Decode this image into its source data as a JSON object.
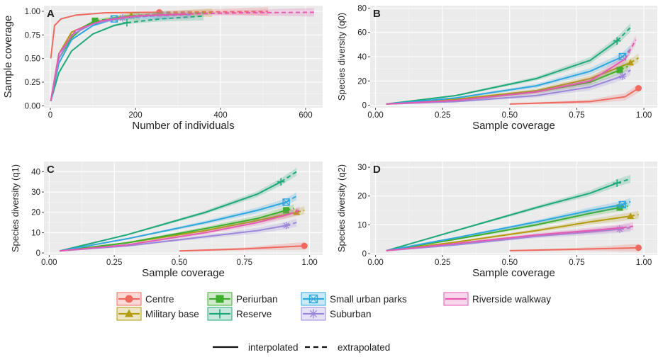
{
  "colors": {
    "Centre": "#F0695E",
    "Military base": "#B59B12",
    "Periurban": "#3FAE2E",
    "Reserve": "#1FA878",
    "Small urban parks": "#2EA7DD",
    "Suburban": "#9B87D9",
    "Riverside walkway": "#E45AB1"
  },
  "legend": {
    "items": [
      {
        "name": "Centre",
        "marker": "circle"
      },
      {
        "name": "Military base",
        "marker": "triangle"
      },
      {
        "name": "Periurban",
        "marker": "square"
      },
      {
        "name": "Reserve",
        "marker": "plus"
      },
      {
        "name": "Small urban parks",
        "marker": "boxx"
      },
      {
        "name": "Suburban",
        "marker": "star"
      },
      {
        "name": "Riverside walkway",
        "marker": "none"
      }
    ],
    "line_types": [
      {
        "label": "interpolated",
        "dash": "solid"
      },
      {
        "label": "extrapolated",
        "dash": "dashed"
      }
    ]
  },
  "chart_data": [
    {
      "panel": "A",
      "type": "line",
      "xlabel": "Number of individuals",
      "ylabel": "Sample coverage",
      "xlim": [
        -15,
        640
      ],
      "ylim": [
        -0.02,
        1.06
      ],
      "xticks": [
        0,
        200,
        400,
        600
      ],
      "xticklabels": [
        "0",
        "200",
        "400",
        "600"
      ],
      "yticks": [
        0,
        0.25,
        0.5,
        0.75,
        1.0
      ],
      "yticklabels": [
        "0.00",
        "0.25",
        "0.50",
        "0.75",
        "1.00"
      ],
      "series": [
        {
          "name": "Centre",
          "points": [
            [
              1,
              0.5
            ],
            [
              10,
              0.85
            ],
            [
              25,
              0.92
            ],
            [
              60,
              0.96
            ],
            [
              130,
              0.985
            ],
            [
              256,
              0.99
            ],
            [
              380,
              0.995
            ],
            [
              512,
              0.998
            ]
          ],
          "observed": [
            256,
            0.99
          ]
        },
        {
          "name": "Military base",
          "points": [
            [
              1,
              0.05
            ],
            [
              20,
              0.55
            ],
            [
              50,
              0.78
            ],
            [
              100,
              0.88
            ],
            [
              150,
              0.93
            ],
            [
              190,
              0.955
            ],
            [
              280,
              0.975
            ],
            [
              380,
              0.985
            ]
          ],
          "observed": [
            190,
            0.955
          ]
        },
        {
          "name": "Periurban",
          "points": [
            [
              1,
              0.05
            ],
            [
              20,
              0.5
            ],
            [
              50,
              0.72
            ],
            [
              80,
              0.84
            ],
            [
              105,
              0.9
            ],
            [
              160,
              0.93
            ],
            [
              210,
              0.95
            ]
          ],
          "observed": [
            105,
            0.9
          ]
        },
        {
          "name": "Reserve",
          "points": [
            [
              1,
              0.05
            ],
            [
              20,
              0.35
            ],
            [
              50,
              0.58
            ],
            [
              100,
              0.76
            ],
            [
              150,
              0.85
            ],
            [
              180,
              0.88
            ],
            [
              260,
              0.92
            ],
            [
              360,
              0.95
            ]
          ],
          "observed": [
            180,
            0.88
          ]
        },
        {
          "name": "Small urban parks",
          "points": [
            [
              1,
              0.05
            ],
            [
              20,
              0.45
            ],
            [
              50,
              0.7
            ],
            [
              100,
              0.85
            ],
            [
              150,
              0.92
            ],
            [
              200,
              0.94
            ],
            [
              280,
              0.96
            ]
          ],
          "observed": [
            150,
            0.92
          ]
        },
        {
          "name": "Suburban",
          "points": [
            [
              1,
              0.05
            ],
            [
              20,
              0.5
            ],
            [
              50,
              0.75
            ],
            [
              100,
              0.87
            ],
            [
              170,
              0.93
            ],
            [
              230,
              0.95
            ],
            [
              330,
              0.965
            ]
          ],
          "observed": [
            170,
            0.93
          ]
        },
        {
          "name": "Riverside walkway",
          "points": [
            [
              1,
              0.05
            ],
            [
              20,
              0.55
            ],
            [
              60,
              0.8
            ],
            [
              120,
              0.9
            ],
            [
              200,
              0.95
            ],
            [
              310,
              0.97
            ],
            [
              450,
              0.985
            ],
            [
              620,
              0.99
            ]
          ],
          "observed": [
            310,
            0.97
          ]
        }
      ]
    },
    {
      "panel": "B",
      "type": "line",
      "xlabel": "Sample coverage",
      "ylabel": "Species diversity (q0)",
      "xlim": [
        -0.02,
        1.05
      ],
      "ylim": [
        -2,
        82
      ],
      "xticks": [
        0,
        0.25,
        0.5,
        0.75,
        1.0
      ],
      "xticklabels": [
        "0.00",
        "0.25",
        "0.50",
        "0.75",
        "1.00"
      ],
      "yticks": [
        0,
        20,
        40,
        60,
        80
      ],
      "yticklabels": [
        "0",
        "20",
        "40",
        "60",
        "80"
      ],
      "series": [
        {
          "name": "Centre",
          "points": [
            [
              0.5,
              1
            ],
            [
              0.8,
              3
            ],
            [
              0.93,
              7
            ],
            [
              0.98,
              14
            ]
          ],
          "observed": [
            0.98,
            14
          ]
        },
        {
          "name": "Military base",
          "points": [
            [
              0.04,
              1
            ],
            [
              0.3,
              5
            ],
            [
              0.6,
              12
            ],
            [
              0.8,
              22
            ],
            [
              0.95,
              35
            ],
            [
              0.98,
              39
            ]
          ],
          "observed": [
            0.95,
            35
          ]
        },
        {
          "name": "Periurban",
          "points": [
            [
              0.04,
              1
            ],
            [
              0.3,
              4
            ],
            [
              0.6,
              11
            ],
            [
              0.8,
              19
            ],
            [
              0.91,
              29
            ],
            [
              0.94,
              32
            ]
          ],
          "observed": [
            0.91,
            29
          ]
        },
        {
          "name": "Reserve",
          "points": [
            [
              0.04,
              1
            ],
            [
              0.3,
              8
            ],
            [
              0.6,
              22
            ],
            [
              0.8,
              37
            ],
            [
              0.9,
              53
            ],
            [
              0.95,
              64
            ]
          ],
          "observed": [
            0.9,
            53
          ]
        },
        {
          "name": "Small urban parks",
          "points": [
            [
              0.04,
              1
            ],
            [
              0.3,
              6
            ],
            [
              0.6,
              16
            ],
            [
              0.8,
              28
            ],
            [
              0.92,
              40
            ],
            [
              0.95,
              46
            ]
          ],
          "observed": [
            0.92,
            40
          ]
        },
        {
          "name": "Suburban",
          "points": [
            [
              0.04,
              1
            ],
            [
              0.3,
              3
            ],
            [
              0.6,
              8
            ],
            [
              0.8,
              15
            ],
            [
              0.92,
              24
            ],
            [
              0.95,
              29
            ]
          ],
          "observed": [
            0.92,
            24
          ]
        },
        {
          "name": "Riverside walkway",
          "points": [
            [
              0.04,
              1
            ],
            [
              0.3,
              4
            ],
            [
              0.6,
              11
            ],
            [
              0.8,
              20
            ],
            [
              0.93,
              38
            ],
            [
              0.97,
              54
            ]
          ],
          "observed": [
            0.93,
            38
          ]
        }
      ]
    },
    {
      "panel": "C",
      "type": "line",
      "xlabel": "Sample coverage",
      "ylabel": "Species diversity (q1)",
      "xlim": [
        -0.02,
        1.05
      ],
      "ylim": [
        -1,
        45
      ],
      "xticks": [
        0,
        0.25,
        0.5,
        0.75,
        1.0
      ],
      "xticklabels": [
        "0.00",
        "0.25",
        "0.50",
        "0.75",
        "1.00"
      ],
      "yticks": [
        0,
        10,
        20,
        30,
        40
      ],
      "yticklabels": [
        "0",
        "10",
        "20",
        "30",
        "40"
      ],
      "series": [
        {
          "name": "Centre",
          "points": [
            [
              0.5,
              1
            ],
            [
              0.75,
              2
            ],
            [
              0.98,
              3.5
            ]
          ],
          "observed": [
            0.98,
            3.5
          ]
        },
        {
          "name": "Military base",
          "points": [
            [
              0.04,
              1
            ],
            [
              0.3,
              5
            ],
            [
              0.6,
              11
            ],
            [
              0.8,
              16
            ],
            [
              0.95,
              20
            ],
            [
              0.98,
              21
            ]
          ],
          "observed": [
            0.95,
            20
          ]
        },
        {
          "name": "Periurban",
          "points": [
            [
              0.04,
              1
            ],
            [
              0.3,
              5
            ],
            [
              0.6,
              12
            ],
            [
              0.8,
              17
            ],
            [
              0.91,
              21
            ],
            [
              0.94,
              22
            ]
          ],
          "observed": [
            0.91,
            21
          ]
        },
        {
          "name": "Reserve",
          "points": [
            [
              0.04,
              1
            ],
            [
              0.3,
              9
            ],
            [
              0.6,
              20
            ],
            [
              0.8,
              29
            ],
            [
              0.89,
              35
            ],
            [
              0.95,
              40
            ]
          ],
          "observed": [
            0.89,
            35
          ]
        },
        {
          "name": "Small urban parks",
          "points": [
            [
              0.04,
              1
            ],
            [
              0.3,
              7
            ],
            [
              0.6,
              15
            ],
            [
              0.8,
              21
            ],
            [
              0.91,
              25
            ],
            [
              0.95,
              28
            ]
          ],
          "observed": [
            0.91,
            25
          ]
        },
        {
          "name": "Suburban",
          "points": [
            [
              0.04,
              1
            ],
            [
              0.3,
              3.5
            ],
            [
              0.6,
              8
            ],
            [
              0.8,
              11
            ],
            [
              0.91,
              13.5
            ],
            [
              0.95,
              15
            ]
          ],
          "observed": [
            0.91,
            13.5
          ]
        },
        {
          "name": "Riverside walkway",
          "points": [
            [
              0.04,
              1
            ],
            [
              0.3,
              4
            ],
            [
              0.6,
              10
            ],
            [
              0.8,
              15
            ],
            [
              0.92,
              19
            ],
            [
              0.96,
              21
            ]
          ],
          "observed": [
            0.92,
            19
          ]
        }
      ]
    },
    {
      "panel": "D",
      "type": "line",
      "xlabel": "Sample coverage",
      "ylabel": "Species diversity (q2)",
      "xlim": [
        -0.02,
        1.05
      ],
      "ylim": [
        -0.5,
        32
      ],
      "xticks": [
        0,
        0.25,
        0.5,
        0.75,
        1.0
      ],
      "xticklabels": [
        "0.00",
        "0.25",
        "0.50",
        "0.75",
        "1.00"
      ],
      "yticks": [
        0,
        10,
        20,
        30
      ],
      "yticklabels": [
        "0",
        "10",
        "20",
        "30"
      ],
      "series": [
        {
          "name": "Centre",
          "points": [
            [
              0.5,
              1
            ],
            [
              0.75,
              1.5
            ],
            [
              0.98,
              2
            ]
          ],
          "observed": [
            0.98,
            2
          ]
        },
        {
          "name": "Military base",
          "points": [
            [
              0.04,
              1
            ],
            [
              0.3,
              4
            ],
            [
              0.6,
              8
            ],
            [
              0.8,
              11
            ],
            [
              0.95,
              13
            ],
            [
              0.98,
              13.5
            ]
          ],
          "observed": [
            0.95,
            13
          ]
        },
        {
          "name": "Periurban",
          "points": [
            [
              0.04,
              1
            ],
            [
              0.3,
              5
            ],
            [
              0.6,
              10
            ],
            [
              0.8,
              14
            ],
            [
              0.91,
              16
            ],
            [
              0.94,
              16.5
            ]
          ],
          "observed": [
            0.91,
            16
          ]
        },
        {
          "name": "Reserve",
          "points": [
            [
              0.04,
              1
            ],
            [
              0.3,
              8
            ],
            [
              0.6,
              16
            ],
            [
              0.8,
              21
            ],
            [
              0.9,
              24.5
            ],
            [
              0.95,
              26
            ]
          ],
          "observed": [
            0.9,
            24.5
          ]
        },
        {
          "name": "Small urban parks",
          "points": [
            [
              0.04,
              1
            ],
            [
              0.3,
              5.5
            ],
            [
              0.6,
              11
            ],
            [
              0.8,
              15
            ],
            [
              0.92,
              17
            ],
            [
              0.95,
              18
            ]
          ],
          "observed": [
            0.92,
            17
          ]
        },
        {
          "name": "Suburban",
          "points": [
            [
              0.04,
              1
            ],
            [
              0.3,
              3
            ],
            [
              0.6,
              6
            ],
            [
              0.8,
              7.5
            ],
            [
              0.91,
              8.5
            ],
            [
              0.95,
              9
            ]
          ],
          "observed": [
            0.91,
            8.5
          ]
        },
        {
          "name": "Riverside walkway",
          "points": [
            [
              0.04,
              1
            ],
            [
              0.3,
              3.5
            ],
            [
              0.6,
              6.5
            ],
            [
              0.8,
              8
            ],
            [
              0.92,
              9
            ],
            [
              0.96,
              9.5
            ]
          ],
          "observed": [
            0.92,
            9
          ]
        }
      ]
    }
  ]
}
